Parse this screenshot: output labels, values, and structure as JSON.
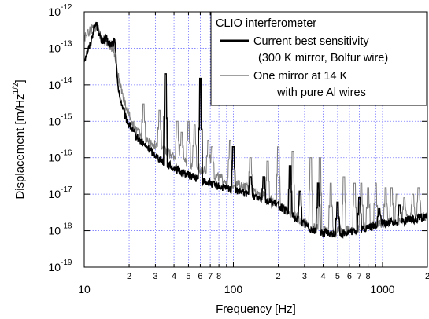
{
  "chart_data": {
    "type": "line",
    "xlabel": "Frequency [Hz]",
    "ylabel_main": "Displacement [m/Hz",
    "ylabel_exp": "1/2",
    "ylabel_close": "]",
    "x_scale": "log",
    "y_scale": "log",
    "xlim": [
      10,
      2000
    ],
    "ylim": [
      1e-19,
      1e-12
    ],
    "grid": true,
    "legend_position": "top-right",
    "legend_title": "CLIO interferometer",
    "x_major_ticks": [
      {
        "value": 10,
        "label": "10"
      },
      {
        "value": 100,
        "label": "100"
      },
      {
        "value": 1000,
        "label": "1000"
      }
    ],
    "x_minor_ticks": [
      {
        "value": 20,
        "label": "2"
      },
      {
        "value": 30,
        "label": "3"
      },
      {
        "value": 40,
        "label": "4"
      },
      {
        "value": 50,
        "label": "5"
      },
      {
        "value": 60,
        "label": "6"
      },
      {
        "value": 70,
        "label": "7"
      },
      {
        "value": 80,
        "label": "8"
      },
      {
        "value": 200,
        "label": "2"
      },
      {
        "value": 300,
        "label": "3"
      },
      {
        "value": 400,
        "label": "4"
      },
      {
        "value": 500,
        "label": "5"
      },
      {
        "value": 600,
        "label": "6"
      },
      {
        "value": 700,
        "label": "7"
      },
      {
        "value": 800,
        "label": "8"
      },
      {
        "value": 2000,
        "label": "2"
      }
    ],
    "y_ticks": [
      {
        "value": 1e-12,
        "base": "10",
        "exp": "-12"
      },
      {
        "value": 1e-13,
        "base": "10",
        "exp": "-13"
      },
      {
        "value": 1e-14,
        "base": "10",
        "exp": "-14"
      },
      {
        "value": 1e-15,
        "base": "10",
        "exp": "-15"
      },
      {
        "value": 1e-16,
        "base": "10",
        "exp": "-16"
      },
      {
        "value": 1e-17,
        "base": "10",
        "exp": "-17"
      },
      {
        "value": 1e-18,
        "base": "10",
        "exp": "-18"
      },
      {
        "value": 1e-19,
        "base": "10",
        "exp": "-19"
      }
    ],
    "series": [
      {
        "name_lines": [
          "Current best sensitivity",
          "(300 K mirror, Bolfur wire)"
        ],
        "color": "#000000",
        "baseline": [
          [
            10,
            5e-14
          ],
          [
            11,
            1.3e-13
          ],
          [
            11.5,
            3e-13
          ],
          [
            12,
            5e-13
          ],
          [
            12.5,
            3e-13
          ],
          [
            13,
            1.5e-13
          ],
          [
            14,
            1.8e-13
          ],
          [
            15,
            1.2e-13
          ],
          [
            16,
            1.6e-13
          ],
          [
            17,
            6e-15
          ],
          [
            19,
            1.2e-15
          ],
          [
            22,
            4e-16
          ],
          [
            26,
            2e-16
          ],
          [
            30,
            1.2e-16
          ],
          [
            35,
            7e-17
          ],
          [
            45,
            4e-17
          ],
          [
            60,
            2.5e-17
          ],
          [
            80,
            1.6e-17
          ],
          [
            100,
            1.3e-17
          ],
          [
            150,
            8e-18
          ],
          [
            200,
            5e-18
          ],
          [
            250,
            2.5e-18
          ],
          [
            300,
            1.5e-18
          ],
          [
            350,
            1e-18
          ],
          [
            450,
            8e-19
          ],
          [
            600,
            9e-19
          ],
          [
            800,
            1.2e-18
          ],
          [
            1000,
            1.6e-18
          ],
          [
            1300,
            1.8e-18
          ],
          [
            1600,
            2e-18
          ],
          [
            2000,
            2.5e-18
          ]
        ],
        "peaks": [
          [
            35,
            2e-14
          ],
          [
            60,
            1.5e-14
          ],
          [
            100,
            2e-16
          ],
          [
            130,
            3e-17
          ],
          [
            160,
            3e-17
          ],
          [
            240,
            6e-17
          ],
          [
            280,
            1.2e-17
          ],
          [
            370,
            2e-17
          ],
          [
            500,
            6e-18
          ],
          [
            700,
            8e-18
          ],
          [
            950,
            4e-18
          ],
          [
            1300,
            5e-18
          ]
        ]
      },
      {
        "name_lines": [
          "One mirror at 14 K",
          "with pure Al wires"
        ],
        "color": "#808080",
        "baseline": [
          [
            10,
            2e-13
          ],
          [
            11,
            3e-13
          ],
          [
            12,
            4e-13
          ],
          [
            13,
            2e-13
          ],
          [
            14,
            1.5e-13
          ],
          [
            15,
            1.2e-13
          ],
          [
            16,
            8e-14
          ],
          [
            17,
            1.5e-14
          ],
          [
            19,
            2.5e-15
          ],
          [
            22,
            6e-16
          ],
          [
            26,
            3e-16
          ],
          [
            30,
            2.2e-16
          ],
          [
            40,
            1.1e-16
          ],
          [
            60,
            5e-17
          ],
          [
            80,
            2.8e-17
          ],
          [
            100,
            2e-17
          ],
          [
            150,
            1.1e-17
          ],
          [
            200,
            5e-18
          ],
          [
            250,
            2.8e-18
          ],
          [
            300,
            1.6e-18
          ],
          [
            400,
            1e-18
          ],
          [
            500,
            1e-18
          ],
          [
            700,
            1.2e-18
          ],
          [
            1000,
            1.5e-18
          ],
          [
            1300,
            2e-18
          ],
          [
            1600,
            2.2e-18
          ],
          [
            2000,
            2.5e-18
          ]
        ],
        "peaks": [
          [
            25,
            3e-15
          ],
          [
            32,
            2e-15
          ],
          [
            42,
            1e-15
          ],
          [
            45,
            5e-16
          ],
          [
            50,
            1e-15
          ],
          [
            55,
            8e-16
          ],
          [
            68,
            3e-16
          ],
          [
            72,
            2e-16
          ],
          [
            95,
            3e-16
          ],
          [
            130,
            1e-16
          ],
          [
            170,
            8e-17
          ],
          [
            200,
            2e-16
          ],
          [
            250,
            1.5e-16
          ],
          [
            330,
            1e-16
          ],
          [
            380,
            1e-16
          ],
          [
            450,
            2e-17
          ],
          [
            550,
            3e-17
          ],
          [
            650,
            2e-17
          ],
          [
            720,
            2e-17
          ],
          [
            800,
            1.5e-17
          ],
          [
            900,
            2e-17
          ],
          [
            1050,
            1.5e-17
          ],
          [
            1150,
            1.5e-17
          ],
          [
            1250,
            1e-17
          ],
          [
            1400,
            8e-18
          ],
          [
            1600,
            1e-17
          ],
          [
            1750,
            1.5e-17
          ]
        ]
      }
    ]
  }
}
